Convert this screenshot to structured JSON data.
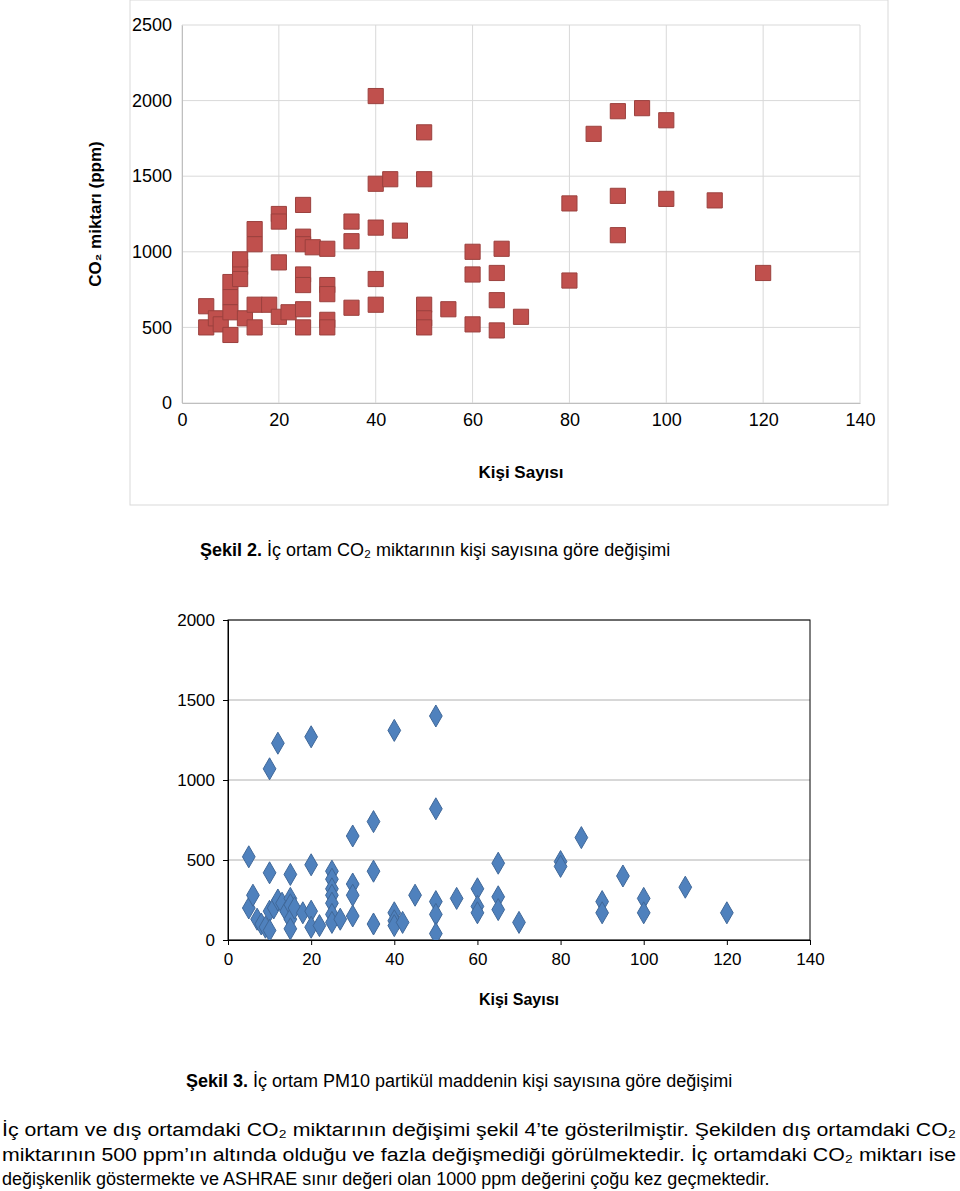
{
  "chart_data": [
    {
      "type": "scatter",
      "title": "Şekil 2. İç ortam CO₂ miktarının kişi sayısına göre değişimi",
      "x_label": "Kişi Sayısı",
      "y_label": "CO₂ miktarı (ppm)",
      "xlim": [
        0,
        140
      ],
      "xticks": [
        0,
        20,
        40,
        60,
        80,
        100,
        120,
        140
      ],
      "ylim": [
        0,
        2500
      ],
      "yticks": [
        0,
        500,
        1000,
        1500,
        2000,
        2500
      ],
      "grid": true,
      "color": "#c0504d",
      "marker": "square",
      "x": [
        5,
        5,
        7,
        8,
        10,
        10,
        10,
        10,
        12,
        12,
        12,
        13,
        15,
        15,
        15,
        15,
        18,
        20,
        20,
        20,
        20,
        22,
        25,
        25,
        25,
        25,
        25,
        25,
        25,
        27,
        30,
        30,
        30,
        30,
        30,
        35,
        35,
        35,
        40,
        40,
        40,
        40,
        40,
        43,
        45,
        50,
        50,
        50,
        50,
        50,
        55,
        60,
        60,
        60,
        65,
        65,
        65,
        66,
        70,
        80,
        80,
        85,
        90,
        90,
        90,
        95,
        100,
        100,
        110,
        120
      ],
      "values": [
        640,
        500,
        560,
        520,
        800,
        700,
        600,
        450,
        900,
        950,
        820,
        560,
        1150,
        1050,
        650,
        500,
        650,
        1250,
        1200,
        930,
        570,
        600,
        1310,
        1100,
        1050,
        850,
        780,
        620,
        500,
        1030,
        1020,
        780,
        720,
        550,
        500,
        1200,
        1070,
        630,
        2030,
        1450,
        1160,
        820,
        650,
        1480,
        1140,
        1790,
        1480,
        650,
        560,
        500,
        620,
        1000,
        850,
        520,
        860,
        680,
        480,
        1020,
        570,
        1320,
        810,
        1780,
        1930,
        1370,
        1110,
        1950,
        1870,
        1350,
        1340,
        860
      ]
    },
    {
      "type": "scatter",
      "title": "Şekil 3. İç ortam PM10 partikül maddenin kişi sayısına göre değişimi",
      "x_label": "Kişi Sayısı",
      "xlim": [
        0,
        140
      ],
      "xticks": [
        0,
        20,
        40,
        60,
        80,
        100,
        120,
        140
      ],
      "ylim": [
        0,
        2000
      ],
      "yticks": [
        0,
        500,
        1000,
        1500,
        2000
      ],
      "grid": "y",
      "color": "#4f81bd",
      "marker": "diamond",
      "x": [
        5,
        5,
        6,
        7,
        8,
        9,
        10,
        10,
        10,
        10,
        11,
        12,
        12,
        13,
        14,
        15,
        15,
        15,
        15,
        15,
        16,
        18,
        20,
        20,
        20,
        20,
        22,
        25,
        25,
        25,
        25,
        25,
        25,
        25,
        27,
        30,
        30,
        30,
        30,
        35,
        35,
        35,
        40,
        40,
        40,
        40,
        42,
        45,
        50,
        50,
        50,
        50,
        50,
        55,
        60,
        60,
        60,
        65,
        65,
        65,
        70,
        80,
        80,
        85,
        90,
        90,
        95,
        100,
        100,
        110,
        120
      ],
      "values": [
        520,
        200,
        280,
        130,
        100,
        80,
        1070,
        420,
        180,
        60,
        200,
        1230,
        250,
        230,
        180,
        410,
        260,
        220,
        130,
        70,
        200,
        170,
        1270,
        470,
        180,
        80,
        90,
        430,
        380,
        320,
        280,
        230,
        160,
        110,
        130,
        650,
        350,
        280,
        150,
        740,
        430,
        100,
        1310,
        170,
        120,
        90,
        110,
        280,
        1400,
        820,
        240,
        160,
        40,
        260,
        320,
        210,
        170,
        480,
        270,
        190,
        110,
        490,
        460,
        640,
        240,
        170,
        400,
        260,
        170,
        330,
        170
      ]
    }
  ],
  "text": {
    "paragraph": [
      "İç ortam ve dış ortamdaki CO₂ miktarının değişimi şekil 4’te gösterilmiştir. Şekilden dış ortamdaki CO₂",
      "miktarının 500 ppm’ın altında olduğu ve fazla değişmediği görülmektedir. İç ortamdaki CO₂ miktarı ise",
      "değişkenlik göstermekte ve ASHRAE sınır değeri olan 1000 ppm değerini çoğu kez geçmektedir."
    ]
  }
}
